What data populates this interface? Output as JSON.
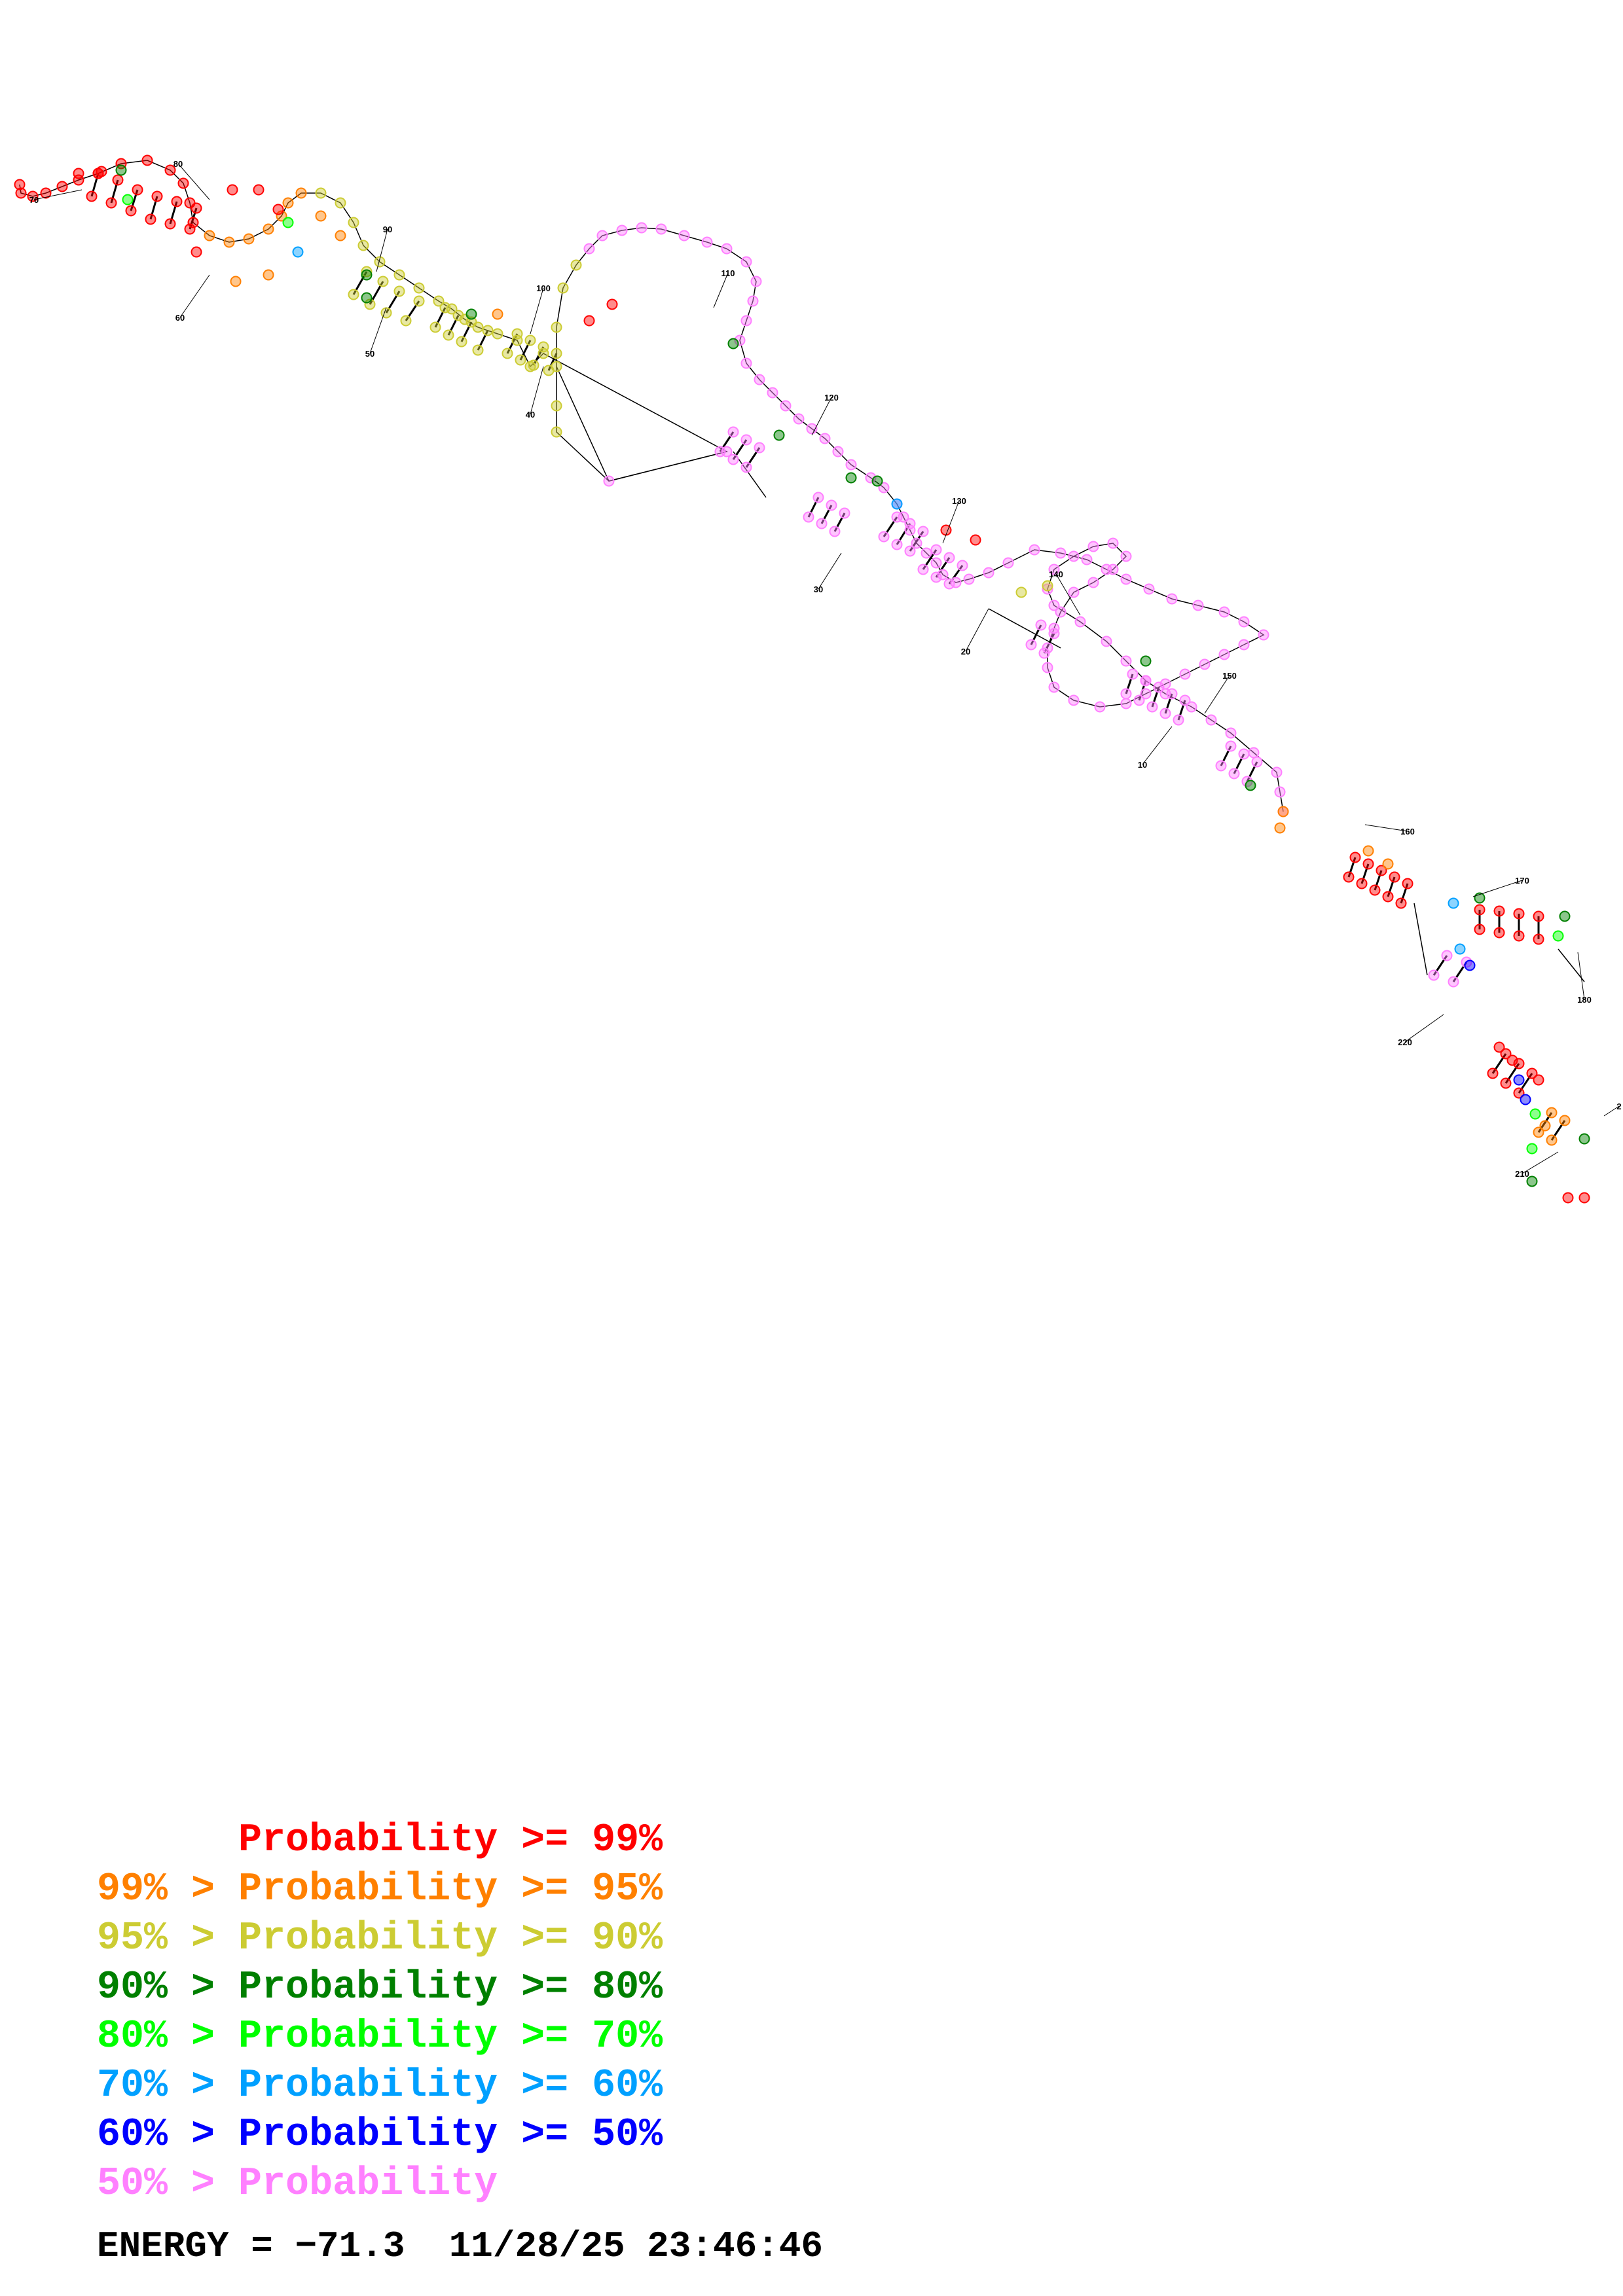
{
  "diagram": {
    "numbering_labels": [
      "10",
      "20",
      "30",
      "40",
      "50",
      "60",
      "70",
      "80",
      "90",
      "100",
      "110",
      "120",
      "130",
      "140",
      "150",
      "160",
      "170",
      "180",
      "210",
      "220",
      "2"
    ]
  },
  "legend": [
    {
      "prefix": "",
      "label": "Probability >= 99%",
      "color": "#ff0000"
    },
    {
      "prefix": "99% > ",
      "label": "Probability >= 95%",
      "color": "#ff8000"
    },
    {
      "prefix": "95% > ",
      "label": "Probability >= 90%",
      "color": "#cccc33"
    },
    {
      "prefix": "90% > ",
      "label": "Probability >= 80%",
      "color": "#008000"
    },
    {
      "prefix": "80% > ",
      "label": "Probability >= 70%",
      "color": "#00ff00"
    },
    {
      "prefix": "70% > ",
      "label": "Probability >= 60%",
      "color": "#00a0ff"
    },
    {
      "prefix": "60% > ",
      "label": "Probability >= 50%",
      "color": "#0000ff"
    },
    {
      "prefix": "50% > ",
      "label": "Probability",
      "color": "#ff80ff"
    }
  ],
  "energy": {
    "label": "ENERGY = ",
    "value": "−71.3",
    "timestamp": "11/28/25 23:46:46"
  },
  "colors": {
    "p99": "#ff0000",
    "p95": "#ff8000",
    "p90": "#cccc33",
    "p80": "#008000",
    "p70": "#00ff00",
    "p60": "#00a0ff",
    "p50": "#0000ff",
    "plow": "#ff80ff"
  }
}
